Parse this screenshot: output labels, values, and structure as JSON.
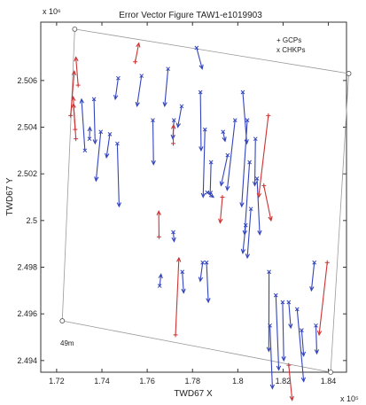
{
  "chart_data": {
    "type": "scatter",
    "title": "Error Vector Figure TAW1-e1019903",
    "xlabel": "TWD67 X",
    "ylabel": "TWD67 Y",
    "x_exponent": "x 10⁵",
    "y_exponent": "x 10⁶",
    "xlim": [
      1.713,
      1.848
    ],
    "ylim": [
      2.4935,
      2.5085
    ],
    "xticks": [
      "1.72",
      "1.74",
      "1.76",
      "1.78",
      "1.8",
      "1.82",
      "1.84"
    ],
    "xtick_values": [
      1.72,
      1.74,
      1.76,
      1.78,
      1.8,
      1.82,
      1.84
    ],
    "yticks": [
      "2.494",
      "2.496",
      "2.498",
      "2.5",
      "2.502",
      "2.504",
      "2.506"
    ],
    "ytick_values": [
      2.494,
      2.496,
      2.498,
      2.5,
      2.502,
      2.504,
      2.506
    ],
    "legend": [
      {
        "label": "+ GCPs",
        "color": "#cc3333"
      },
      {
        "label": "x CHKPs",
        "color": "#3344bb"
      }
    ],
    "scale_label": "49m",
    "colors": {
      "gcp": "#cc3333",
      "chkp": "#3344bb",
      "frame": "#999999"
    },
    "frame_corners": [
      [
        1.728,
        2.5082
      ],
      [
        1.849,
        2.5063
      ],
      [
        1.841,
        2.4935
      ],
      [
        1.7225,
        2.4957
      ]
    ],
    "gcps": [
      {
        "x": 1.7295,
        "y": 2.5058,
        "dx": -0.001,
        "dy": 0.0012
      },
      {
        "x": 1.7262,
        "y": 2.5045,
        "dx": 0.0016,
        "dy": 0.0019
      },
      {
        "x": 1.7282,
        "y": 2.5039,
        "dx": -0.0008,
        "dy": 0.0011
      },
      {
        "x": 1.7285,
        "y": 2.5035,
        "dx": -0.0012,
        "dy": 0.0018
      },
      {
        "x": 1.7547,
        "y": 2.5068,
        "dx": 0.0016,
        "dy": 0.0008
      },
      {
        "x": 1.7715,
        "y": 2.5033,
        "dx": 0.0001,
        "dy": 0.0008
      },
      {
        "x": 1.7652,
        "y": 2.4993,
        "dx": -0.0001,
        "dy": 0.0011
      },
      {
        "x": 1.7932,
        "y": 2.501,
        "dx": -0.001,
        "dy": -0.0011
      },
      {
        "x": 1.8135,
        "y": 2.5045,
        "dx": -0.0043,
        "dy": -0.0035
      },
      {
        "x": 1.8115,
        "y": 2.5015,
        "dx": 0.0032,
        "dy": -0.0015
      },
      {
        "x": 1.8395,
        "y": 2.4982,
        "dx": -0.0036,
        "dy": -0.0031
      },
      {
        "x": 1.7725,
        "y": 2.4951,
        "dx": 0.0015,
        "dy": 0.0033
      },
      {
        "x": 1.8225,
        "y": 2.4938,
        "dx": 0.0015,
        "dy": -0.0015
      }
    ],
    "chkps": [
      {
        "x": 1.7325,
        "y": 2.503,
        "dx": -0.0015,
        "dy": 0.0022
      },
      {
        "x": 1.7365,
        "y": 2.5052,
        "dx": 0.0005,
        "dy": -0.0019
      },
      {
        "x": 1.7345,
        "y": 2.5035,
        "dx": 0.0002,
        "dy": 0.0005
      },
      {
        "x": 1.7395,
        "y": 2.5038,
        "dx": -0.0021,
        "dy": -0.0021
      },
      {
        "x": 1.7435,
        "y": 2.5037,
        "dx": -0.0015,
        "dy": -0.001
      },
      {
        "x": 1.7468,
        "y": 2.5033,
        "dx": 0.0008,
        "dy": -0.0027
      },
      {
        "x": 1.7472,
        "y": 2.5061,
        "dx": -0.0013,
        "dy": -0.0009
      },
      {
        "x": 1.7575,
        "y": 2.5062,
        "dx": -0.002,
        "dy": -0.0013
      },
      {
        "x": 1.7625,
        "y": 2.5043,
        "dx": 0.0003,
        "dy": -0.0019
      },
      {
        "x": 1.7692,
        "y": 2.5065,
        "dx": -0.0015,
        "dy": -0.0016
      },
      {
        "x": 1.7718,
        "y": 2.5043,
        "dx": -0.0005,
        "dy": -0.0008
      },
      {
        "x": 1.7752,
        "y": 2.5049,
        "dx": -0.0017,
        "dy": -0.0009
      },
      {
        "x": 1.7818,
        "y": 2.5074,
        "dx": 0.0025,
        "dy": -0.0009
      },
      {
        "x": 1.7835,
        "y": 2.5055,
        "dx": 0.0003,
        "dy": -0.0025
      },
      {
        "x": 1.7855,
        "y": 2.5039,
        "dx": -0.0008,
        "dy": -0.0029
      },
      {
        "x": 1.7882,
        "y": 2.5025,
        "dx": -0.0004,
        "dy": -0.0014
      },
      {
        "x": 1.7935,
        "y": 2.5038,
        "dx": 0.0009,
        "dy": -0.0004
      },
      {
        "x": 1.7955,
        "y": 2.5028,
        "dx": -0.0029,
        "dy": -0.0013
      },
      {
        "x": 1.7988,
        "y": 2.5043,
        "dx": -0.0035,
        "dy": -0.003
      },
      {
        "x": 1.8022,
        "y": 2.5055,
        "dx": 0.0018,
        "dy": -0.0022
      },
      {
        "x": 1.8042,
        "y": 2.5043,
        "dx": -0.0025,
        "dy": -0.0037
      },
      {
        "x": 1.8052,
        "y": 2.5025,
        "dx": -0.0022,
        "dy": -0.0031
      },
      {
        "x": 1.8078,
        "y": 2.5035,
        "dx": -0.0003,
        "dy": -0.002
      },
      {
        "x": 1.8085,
        "y": 2.5018,
        "dx": 0.0012,
        "dy": -0.0024
      },
      {
        "x": 1.8058,
        "y": 2.5005,
        "dx": -0.0016,
        "dy": -0.0021
      },
      {
        "x": 1.8035,
        "y": 2.4998,
        "dx": -0.0013,
        "dy": -0.0012
      },
      {
        "x": 1.7865,
        "y": 2.5012,
        "dx": 0.0028,
        "dy": -0.0002
      },
      {
        "x": 1.7715,
        "y": 2.4995,
        "dx": 0.0004,
        "dy": -0.0004
      },
      {
        "x": 1.7655,
        "y": 2.4972,
        "dx": 0.0006,
        "dy": 0.0005
      },
      {
        "x": 1.7862,
        "y": 2.4982,
        "dx": 0.0008,
        "dy": -0.0017
      },
      {
        "x": 1.7755,
        "y": 2.4978,
        "dx": 0.0006,
        "dy": -0.0009
      },
      {
        "x": 1.7845,
        "y": 2.4982,
        "dx": -0.0011,
        "dy": -0.0008
      },
      {
        "x": 1.8138,
        "y": 2.4978,
        "dx": -0.0001,
        "dy": -0.0034
      },
      {
        "x": 1.8142,
        "y": 2.4955,
        "dx": 0.0011,
        "dy": -0.0027
      },
      {
        "x": 1.8168,
        "y": 2.4968,
        "dx": 0.0013,
        "dy": -0.0032
      },
      {
        "x": 1.8198,
        "y": 2.4965,
        "dx": 0.0005,
        "dy": -0.0025
      },
      {
        "x": 1.8225,
        "y": 2.4965,
        "dx": 0.0009,
        "dy": -0.0011
      },
      {
        "x": 1.8262,
        "y": 2.4962,
        "dx": 0.0029,
        "dy": -0.0031
      },
      {
        "x": 1.8338,
        "y": 2.4982,
        "dx": -0.0013,
        "dy": -0.0012
      },
      {
        "x": 1.8282,
        "y": 2.4953,
        "dx": 0.0009,
        "dy": -0.0011
      },
      {
        "x": 1.8345,
        "y": 2.4955,
        "dx": 0.0004,
        "dy": -0.0012
      }
    ]
  }
}
